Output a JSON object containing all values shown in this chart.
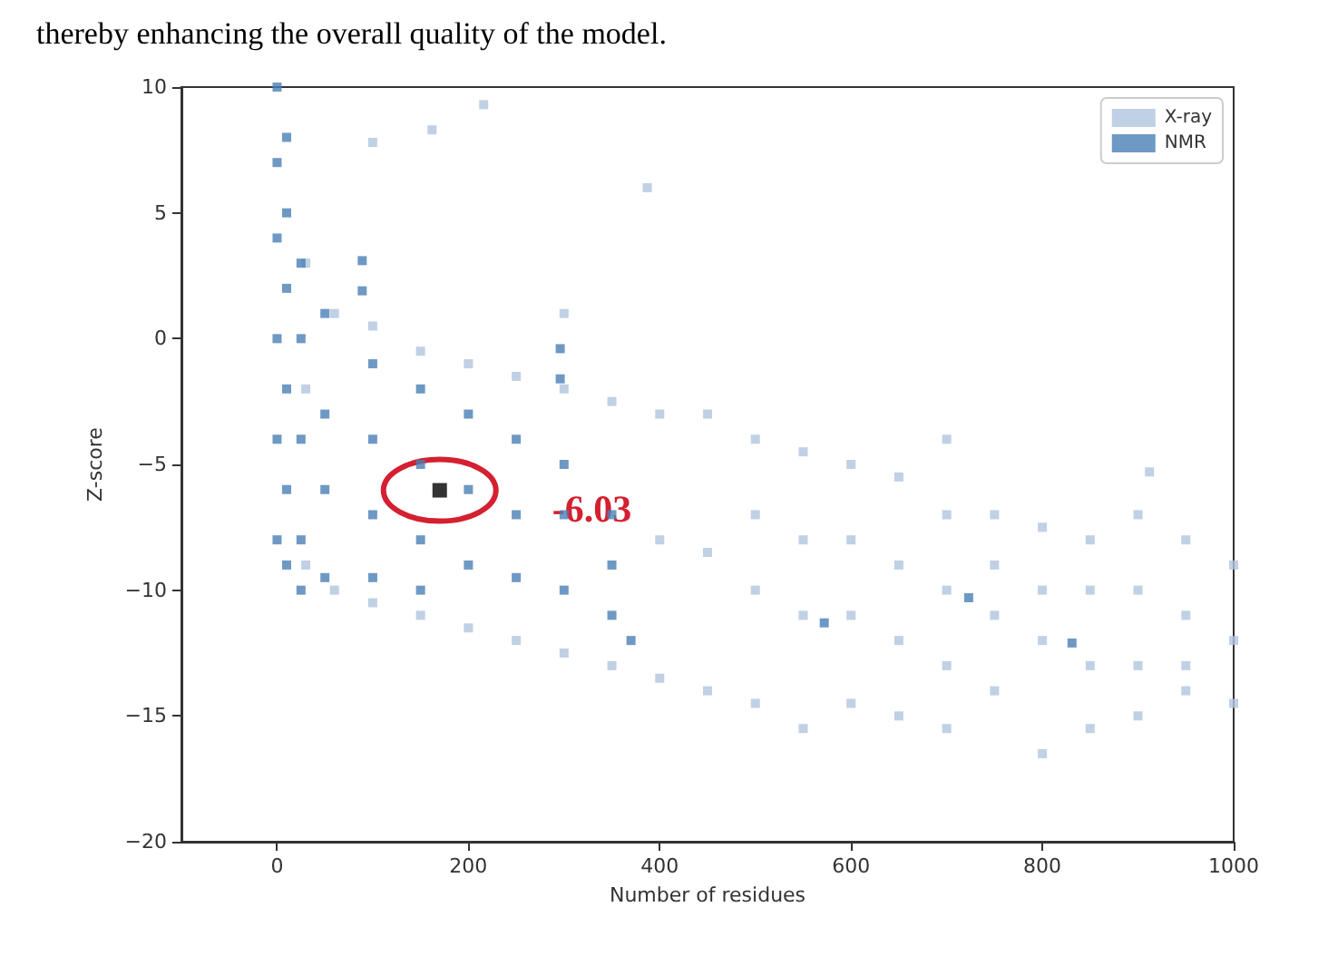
{
  "chart_data": {
    "type": "scatter",
    "annotations": [
      "thereby enhancing the overall quality of the model.",
      {
        "text": "-6.03",
        "x": 170,
        "y": -6.03
      }
    ],
    "xlabel": "Number of residues",
    "ylabel": "Z-score",
    "xlim": [
      -100,
      1000
    ],
    "xticks": [
      0,
      200,
      400,
      600,
      800,
      1000
    ],
    "ylim": [
      -20,
      10
    ],
    "yticks": [
      -20,
      -15,
      -10,
      -5,
      0,
      5,
      10
    ],
    "grid": false,
    "legend": "top right",
    "marker": "square",
    "series": [
      {
        "name": "X-ray",
        "color": "#b0c4de",
        "x": [
          30,
          30,
          30,
          60,
          60,
          100,
          100,
          100,
          150,
          150,
          162,
          216,
          200,
          200,
          250,
          250,
          300,
          300,
          300,
          350,
          350,
          387,
          400,
          400,
          400,
          450,
          450,
          450,
          500,
          500,
          500,
          500,
          550,
          550,
          550,
          550,
          600,
          600,
          600,
          600,
          650,
          650,
          650,
          650,
          700,
          700,
          700,
          700,
          700,
          750,
          750,
          750,
          750,
          800,
          800,
          800,
          800,
          850,
          850,
          850,
          850,
          912,
          900,
          900,
          900,
          900,
          950,
          950,
          950,
          950,
          1000,
          1000,
          1000
        ],
        "values": [
          3,
          -2,
          -9,
          1,
          -10,
          0.5,
          -10.5,
          7.8,
          -0.5,
          -11,
          8.3,
          9.3,
          -1,
          -11.5,
          -1.5,
          -12,
          -2,
          -12.5,
          1,
          -2.5,
          -13,
          6,
          -3,
          -8,
          -13.5,
          -3,
          -8.5,
          -14,
          -4,
          -7,
          -10,
          -14.5,
          -4.5,
          -8,
          -11,
          -15.5,
          -5,
          -8,
          -11,
          -14.5,
          -5.5,
          -9,
          -12,
          -15,
          -4,
          -7,
          -10,
          -13,
          -15.5,
          -7,
          -9,
          -11,
          -14,
          -7.5,
          -10,
          -12,
          -16.5,
          -8,
          -10,
          -13,
          -15.5,
          -5.3,
          -7,
          -10,
          -13,
          -15,
          -8,
          -11,
          -13,
          -14,
          -9,
          -12,
          -14.5
        ]
      },
      {
        "name": "NMR",
        "color": "#4a7fb5",
        "x": [
          0,
          0,
          0,
          0,
          0,
          0,
          10,
          10,
          10,
          10,
          10,
          10,
          25,
          25,
          25,
          25,
          25,
          50,
          50,
          50,
          50,
          89,
          89,
          100,
          100,
          100,
          100,
          150,
          150,
          150,
          150,
          200,
          200,
          200,
          250,
          250,
          250,
          296,
          296,
          300,
          300,
          300,
          350,
          350,
          350,
          370,
          572,
          723,
          831
        ],
        "values": [
          10,
          7,
          4,
          0,
          -4,
          -8,
          8,
          5,
          2,
          -2,
          -6,
          -9,
          3,
          0,
          -4,
          -8,
          -10,
          1,
          -3,
          -6,
          -9.5,
          3.1,
          1.9,
          -1,
          -4,
          -7,
          -9.5,
          -2,
          -5,
          -8,
          -10,
          -3,
          -6,
          -9,
          -4,
          -7,
          -9.5,
          -0.4,
          -1.6,
          -5,
          -7,
          -10,
          -7,
          -9,
          -11,
          -12,
          -11.3,
          -10.3,
          -12.1
        ]
      },
      {
        "color": "#000000",
        "x": [
          170
        ],
        "values": [
          -6.03
        ]
      }
    ]
  }
}
